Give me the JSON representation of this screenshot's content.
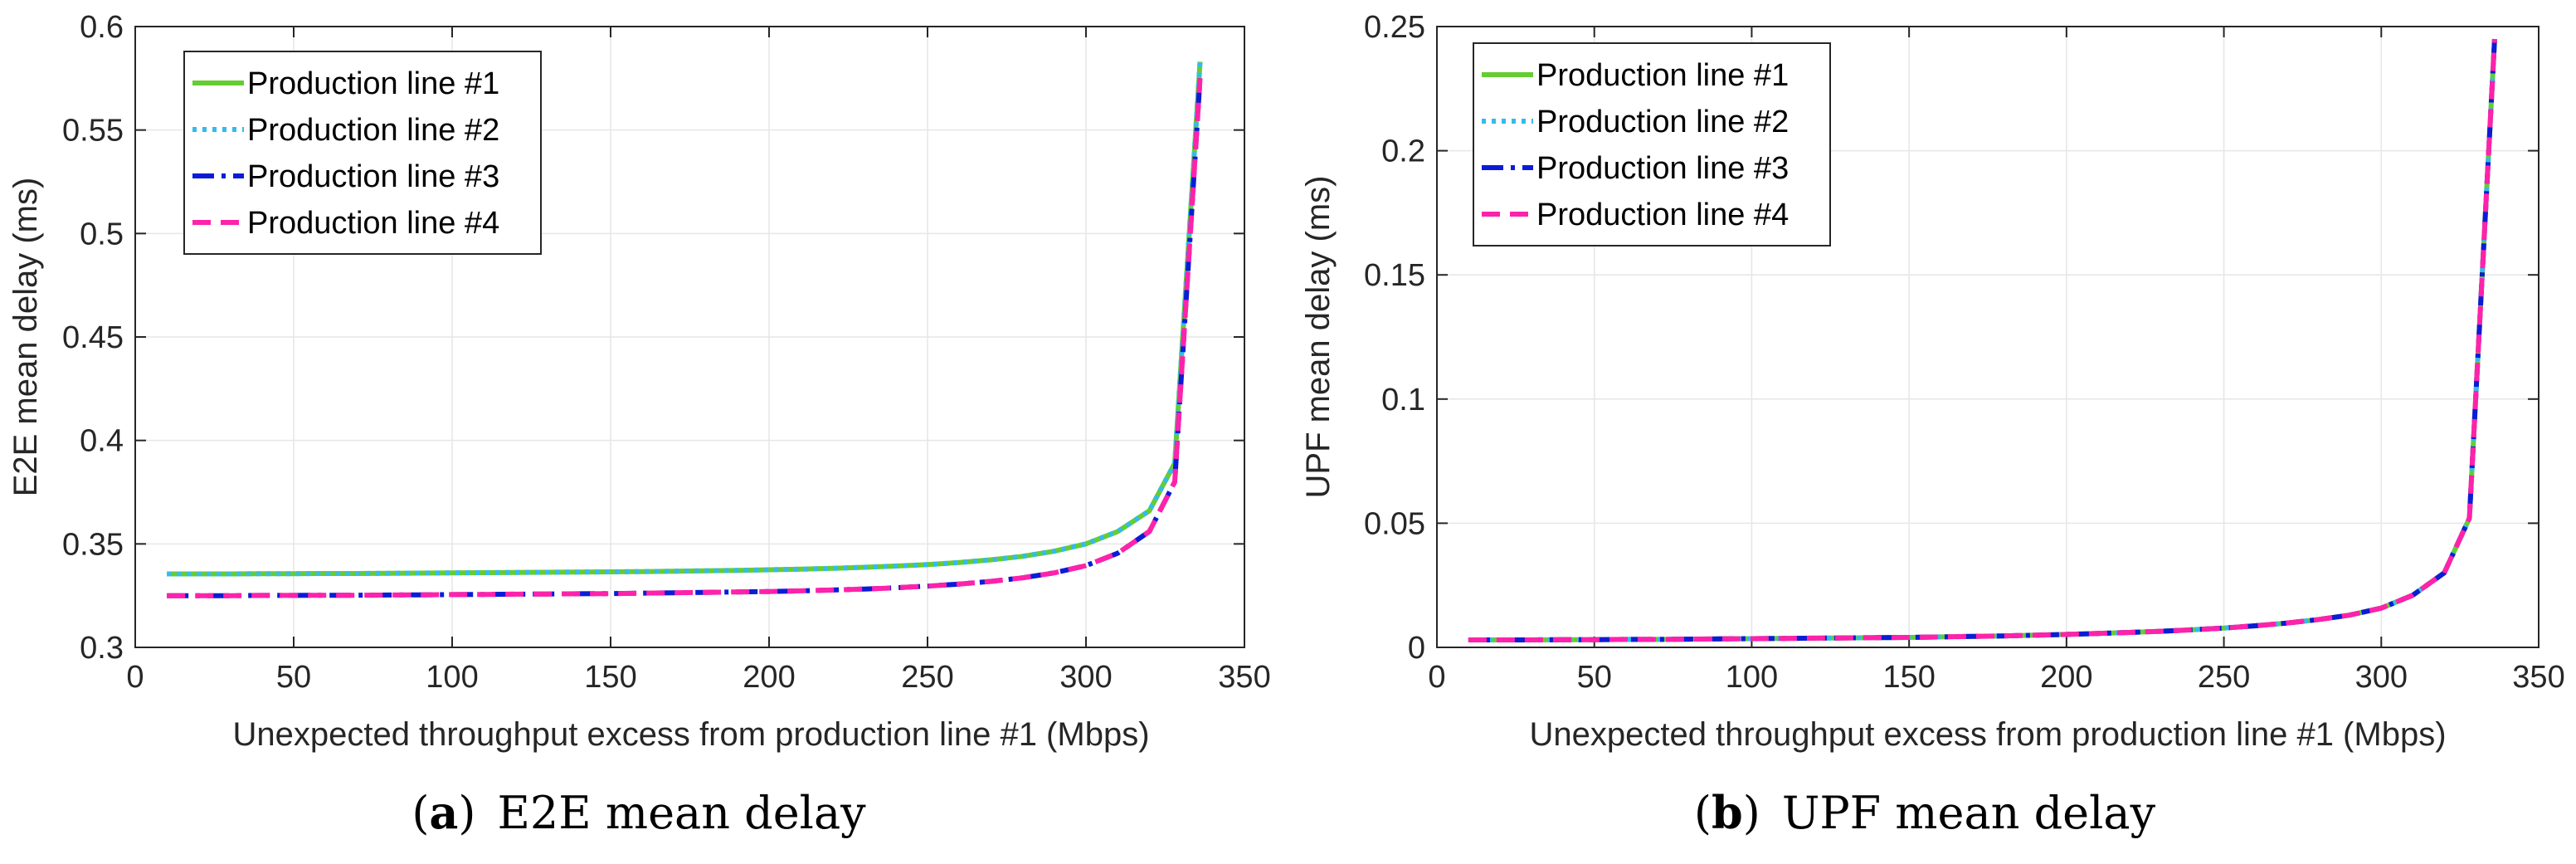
{
  "chart_data": [
    {
      "type": "line",
      "panel": "a",
      "caption_letter": "a",
      "caption_text": "E2E mean delay",
      "xlabel": "Unexpected throughput excess from production line #1 (Mbps)",
      "ylabel": "E2E mean delay (ms)",
      "xlim": [
        0,
        350
      ],
      "ylim": [
        0.3,
        0.6
      ],
      "xticks": [
        0,
        50,
        100,
        150,
        200,
        250,
        300,
        350
      ],
      "yticks": [
        0.3,
        0.35,
        0.4,
        0.45,
        0.5,
        0.55,
        0.6
      ],
      "ytick_labels": [
        "0.3",
        "0.35",
        "0.4",
        "0.45",
        "0.5",
        "0.55",
        "0.6"
      ],
      "grid": true,
      "legend_position": "top-left",
      "x": [
        10,
        20,
        30,
        40,
        50,
        60,
        70,
        80,
        90,
        100,
        110,
        120,
        130,
        140,
        150,
        160,
        170,
        180,
        190,
        200,
        210,
        220,
        230,
        240,
        250,
        260,
        270,
        280,
        290,
        300,
        310,
        320,
        328,
        336
      ],
      "series": [
        {
          "name": "Production line #1",
          "color": "#66cc33",
          "style": "solid",
          "values": [
            0.3355,
            0.3355,
            0.3355,
            0.3356,
            0.3356,
            0.3357,
            0.3357,
            0.3358,
            0.3359,
            0.336,
            0.3361,
            0.3362,
            0.3363,
            0.3364,
            0.3365,
            0.3366,
            0.3368,
            0.337,
            0.3372,
            0.3375,
            0.3378,
            0.3382,
            0.3387,
            0.3393,
            0.34,
            0.341,
            0.3423,
            0.344,
            0.3465,
            0.35,
            0.356,
            0.366,
            0.389,
            0.583
          ]
        },
        {
          "name": "Production line #2",
          "color": "#33bbee",
          "style": "dotted",
          "values": [
            0.3355,
            0.3355,
            0.3355,
            0.3356,
            0.3356,
            0.3357,
            0.3357,
            0.3358,
            0.3359,
            0.336,
            0.3361,
            0.3362,
            0.3363,
            0.3364,
            0.3365,
            0.3366,
            0.3368,
            0.337,
            0.3372,
            0.3375,
            0.3378,
            0.3382,
            0.3387,
            0.3393,
            0.34,
            0.341,
            0.3423,
            0.344,
            0.3465,
            0.35,
            0.356,
            0.366,
            0.389,
            0.583
          ]
        },
        {
          "name": "Production line #3",
          "color": "#0b1cd6",
          "style": "dashdot",
          "values": [
            0.325,
            0.325,
            0.325,
            0.3251,
            0.3251,
            0.3252,
            0.3252,
            0.3253,
            0.3254,
            0.3255,
            0.3256,
            0.3257,
            0.3258,
            0.3259,
            0.326,
            0.3262,
            0.3264,
            0.3266,
            0.3268,
            0.327,
            0.3273,
            0.3277,
            0.3282,
            0.3288,
            0.3296,
            0.3306,
            0.3319,
            0.3336,
            0.336,
            0.3395,
            0.3455,
            0.356,
            0.38,
            0.575
          ]
        },
        {
          "name": "Production line #4",
          "color": "#ff22aa",
          "style": "dashed",
          "values": [
            0.325,
            0.325,
            0.325,
            0.3251,
            0.3251,
            0.3252,
            0.3252,
            0.3253,
            0.3254,
            0.3255,
            0.3256,
            0.3257,
            0.3258,
            0.3259,
            0.326,
            0.3262,
            0.3264,
            0.3266,
            0.3268,
            0.327,
            0.3273,
            0.3277,
            0.3282,
            0.3288,
            0.3296,
            0.3306,
            0.3319,
            0.3336,
            0.336,
            0.3395,
            0.3455,
            0.356,
            0.38,
            0.575
          ]
        }
      ]
    },
    {
      "type": "line",
      "panel": "b",
      "caption_letter": "b",
      "caption_text": "UPF mean delay",
      "xlabel": "Unexpected throughput excess from production line #1 (Mbps)",
      "ylabel": "UPF mean delay (ms)",
      "xlim": [
        0,
        350
      ],
      "ylim": [
        0,
        0.25
      ],
      "xticks": [
        0,
        50,
        100,
        150,
        200,
        250,
        300,
        350
      ],
      "yticks": [
        0,
        0.05,
        0.1,
        0.15,
        0.2,
        0.25
      ],
      "ytick_labels": [
        "0",
        "0.05",
        "0.1",
        "0.15",
        "0.2",
        "0.25"
      ],
      "grid": true,
      "legend_position": "top-left",
      "x": [
        10,
        20,
        30,
        40,
        50,
        60,
        70,
        80,
        90,
        100,
        110,
        120,
        130,
        140,
        150,
        160,
        170,
        180,
        190,
        200,
        210,
        220,
        230,
        240,
        250,
        260,
        270,
        280,
        290,
        300,
        310,
        320,
        328,
        336
      ],
      "series": [
        {
          "name": "Production line #1",
          "color": "#66cc33",
          "style": "solid",
          "values": [
            0.003,
            0.003,
            0.003,
            0.0031,
            0.0031,
            0.0032,
            0.0032,
            0.0033,
            0.0034,
            0.0035,
            0.0036,
            0.0037,
            0.0038,
            0.0039,
            0.004,
            0.0042,
            0.0044,
            0.0046,
            0.0049,
            0.0052,
            0.0056,
            0.006,
            0.0065,
            0.0071,
            0.0078,
            0.0087,
            0.0098,
            0.0112,
            0.013,
            0.0158,
            0.021,
            0.03,
            0.052,
            0.245
          ]
        },
        {
          "name": "Production line #2",
          "color": "#33bbee",
          "style": "dotted",
          "values": [
            0.003,
            0.003,
            0.003,
            0.0031,
            0.0031,
            0.0032,
            0.0032,
            0.0033,
            0.0034,
            0.0035,
            0.0036,
            0.0037,
            0.0038,
            0.0039,
            0.004,
            0.0042,
            0.0044,
            0.0046,
            0.0049,
            0.0052,
            0.0056,
            0.006,
            0.0065,
            0.0071,
            0.0078,
            0.0087,
            0.0098,
            0.0112,
            0.013,
            0.0158,
            0.021,
            0.03,
            0.052,
            0.245
          ]
        },
        {
          "name": "Production line #3",
          "color": "#0b1cd6",
          "style": "dashdot",
          "values": [
            0.003,
            0.003,
            0.003,
            0.0031,
            0.0031,
            0.0032,
            0.0032,
            0.0033,
            0.0034,
            0.0035,
            0.0036,
            0.0037,
            0.0038,
            0.0039,
            0.004,
            0.0042,
            0.0044,
            0.0046,
            0.0049,
            0.0052,
            0.0056,
            0.006,
            0.0065,
            0.0071,
            0.0078,
            0.0087,
            0.0098,
            0.0112,
            0.013,
            0.0158,
            0.021,
            0.03,
            0.052,
            0.245
          ]
        },
        {
          "name": "Production line #4",
          "color": "#ff22aa",
          "style": "dashed",
          "values": [
            0.003,
            0.003,
            0.003,
            0.0031,
            0.0031,
            0.0032,
            0.0032,
            0.0033,
            0.0034,
            0.0035,
            0.0036,
            0.0037,
            0.0038,
            0.0039,
            0.004,
            0.0042,
            0.0044,
            0.0046,
            0.0049,
            0.0052,
            0.0056,
            0.006,
            0.0065,
            0.0071,
            0.0078,
            0.0087,
            0.0098,
            0.0112,
            0.013,
            0.0158,
            0.021,
            0.03,
            0.052,
            0.245
          ]
        }
      ]
    }
  ]
}
